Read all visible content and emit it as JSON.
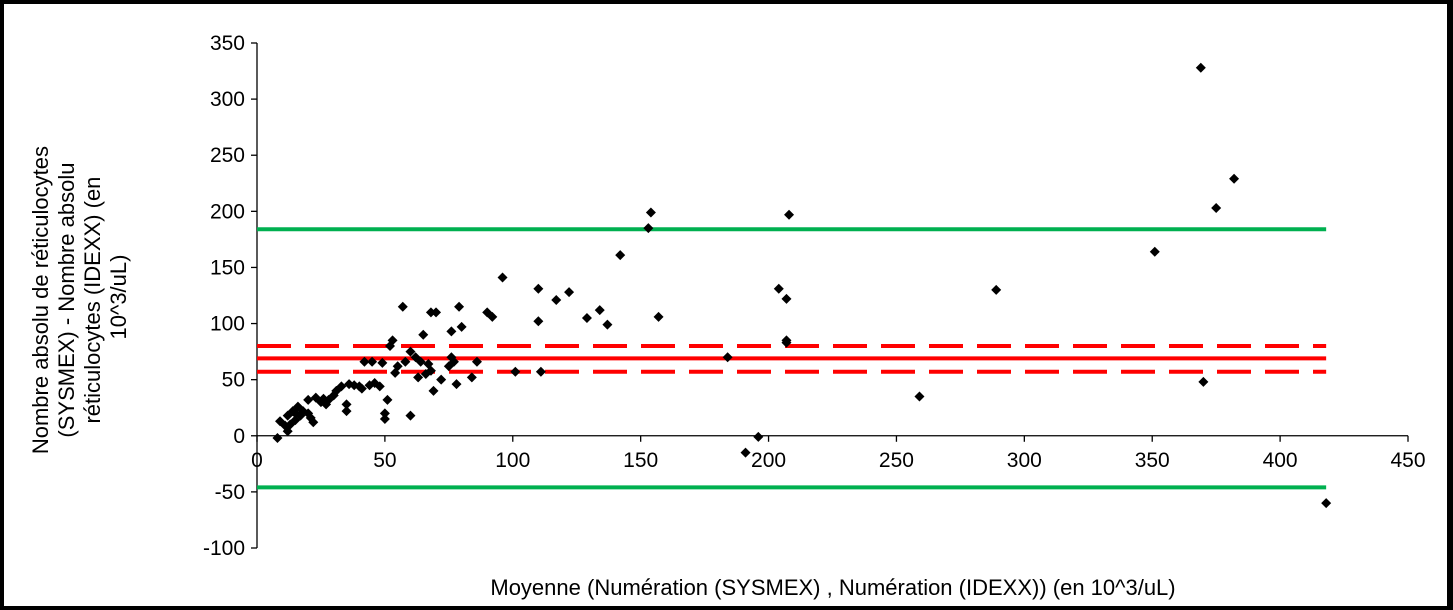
{
  "chart_data": {
    "type": "scatter",
    "title": "",
    "xlabel": "Moyenne (Numération (SYSMEX) , Numération (IDEXX)) (en 10^3/uL)",
    "ylabel": [
      "Nombre absolu de réticulocytes",
      "(SYSMEX) - Nombre absolu",
      "réticulocytes (IDEXX) (en",
      "10^3/uL)"
    ],
    "xlim": [
      0,
      450
    ],
    "ylim": [
      -100,
      350
    ],
    "x_ticks": [
      "0",
      "50",
      "100",
      "150",
      "200",
      "250",
      "300",
      "350",
      "400",
      "450"
    ],
    "y_ticks": [
      "-100",
      "-50",
      "0",
      "50",
      "100",
      "150",
      "200",
      "250",
      "300",
      "350"
    ],
    "grid": false,
    "legend": "none",
    "colors": {
      "points": "#000000",
      "mean": "#ff0000",
      "ci": "#ff0000",
      "limits": "#00b050"
    },
    "points": [
      [
        8,
        -2
      ],
      [
        9,
        13
      ],
      [
        11,
        9
      ],
      [
        12,
        18
      ],
      [
        12,
        4
      ],
      [
        13,
        10
      ],
      [
        14,
        22
      ],
      [
        15,
        14
      ],
      [
        15,
        20
      ],
      [
        16,
        26
      ],
      [
        17,
        18
      ],
      [
        18,
        22
      ],
      [
        20,
        32
      ],
      [
        20,
        20
      ],
      [
        21,
        16
      ],
      [
        22,
        12
      ],
      [
        23,
        34
      ],
      [
        25,
        30
      ],
      [
        26,
        33
      ],
      [
        27,
        28
      ],
      [
        28,
        32
      ],
      [
        30,
        36
      ],
      [
        31,
        40
      ],
      [
        33,
        44
      ],
      [
        35,
        22
      ],
      [
        35,
        28
      ],
      [
        36,
        46
      ],
      [
        38,
        45
      ],
      [
        40,
        44
      ],
      [
        41,
        42
      ],
      [
        42,
        66
      ],
      [
        44,
        45
      ],
      [
        45,
        66
      ],
      [
        46,
        47
      ],
      [
        48,
        44
      ],
      [
        49,
        65
      ],
      [
        50,
        15
      ],
      [
        50,
        20
      ],
      [
        51,
        32
      ],
      [
        52,
        80
      ],
      [
        53,
        85
      ],
      [
        54,
        56
      ],
      [
        55,
        62
      ],
      [
        57,
        115
      ],
      [
        58,
        66
      ],
      [
        60,
        18
      ],
      [
        60,
        75
      ],
      [
        62,
        70
      ],
      [
        63,
        52
      ],
      [
        64,
        66
      ],
      [
        65,
        90
      ],
      [
        66,
        55
      ],
      [
        67,
        64
      ],
      [
        68,
        58
      ],
      [
        68,
        110
      ],
      [
        69,
        40
      ],
      [
        70,
        110
      ],
      [
        72,
        50
      ],
      [
        75,
        62
      ],
      [
        76,
        93
      ],
      [
        76,
        70
      ],
      [
        77,
        66
      ],
      [
        78,
        46
      ],
      [
        79,
        115
      ],
      [
        80,
        97
      ],
      [
        84,
        52
      ],
      [
        86,
        66
      ],
      [
        90,
        110
      ],
      [
        92,
        106
      ],
      [
        96,
        141
      ],
      [
        101,
        57
      ],
      [
        110,
        102
      ],
      [
        110,
        131
      ],
      [
        111,
        57
      ],
      [
        117,
        121
      ],
      [
        122,
        128
      ],
      [
        129,
        105
      ],
      [
        134,
        112
      ],
      [
        137,
        99
      ],
      [
        142,
        161
      ],
      [
        153,
        185
      ],
      [
        154,
        199
      ],
      [
        157,
        106
      ],
      [
        184,
        70
      ],
      [
        191,
        -15
      ],
      [
        196,
        -1
      ],
      [
        204,
        131
      ],
      [
        207,
        122
      ],
      [
        207,
        85
      ],
      [
        207,
        83
      ],
      [
        208,
        197
      ],
      [
        259,
        35
      ],
      [
        289,
        130
      ],
      [
        351,
        164
      ],
      [
        369,
        328
      ],
      [
        370,
        48
      ],
      [
        375,
        203
      ],
      [
        382,
        229
      ],
      [
        418,
        -60
      ]
    ],
    "lines": {
      "mean": 69,
      "ci_upper": 80,
      "ci_lower": 57,
      "upper_limit": 184,
      "lower_limit": -46
    },
    "line_x_range": [
      0,
      418
    ]
  }
}
